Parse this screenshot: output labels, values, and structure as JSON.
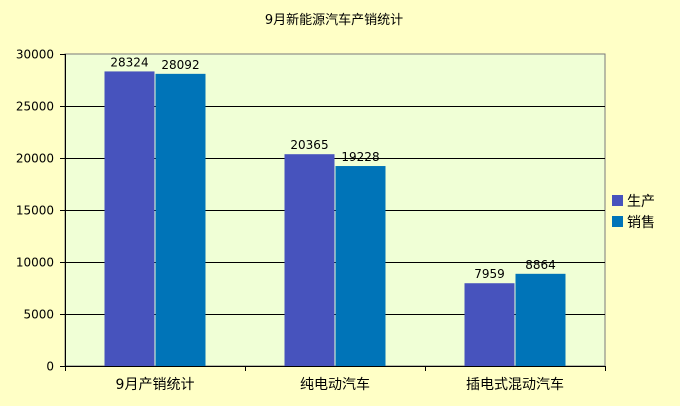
{
  "chart_data": {
    "type": "bar",
    "title": "9月新能源汽车产销统计",
    "categories": [
      "9月产销统计",
      "纯电动汽车",
      "插电式混动汽车"
    ],
    "series": [
      {
        "name": "生产",
        "values": [
          28324,
          20365,
          7959
        ],
        "color": "#4753bd"
      },
      {
        "name": "销售",
        "values": [
          28092,
          19228,
          8864
        ],
        "color": "#0074b8"
      }
    ],
    "y_ticks": [
      0,
      5000,
      10000,
      15000,
      20000,
      25000,
      30000
    ],
    "ylim": [
      0,
      30000
    ],
    "grid": true,
    "legend_position": "right",
    "plot_background": "#f0ffd6",
    "page_background": "#ffffc6"
  }
}
